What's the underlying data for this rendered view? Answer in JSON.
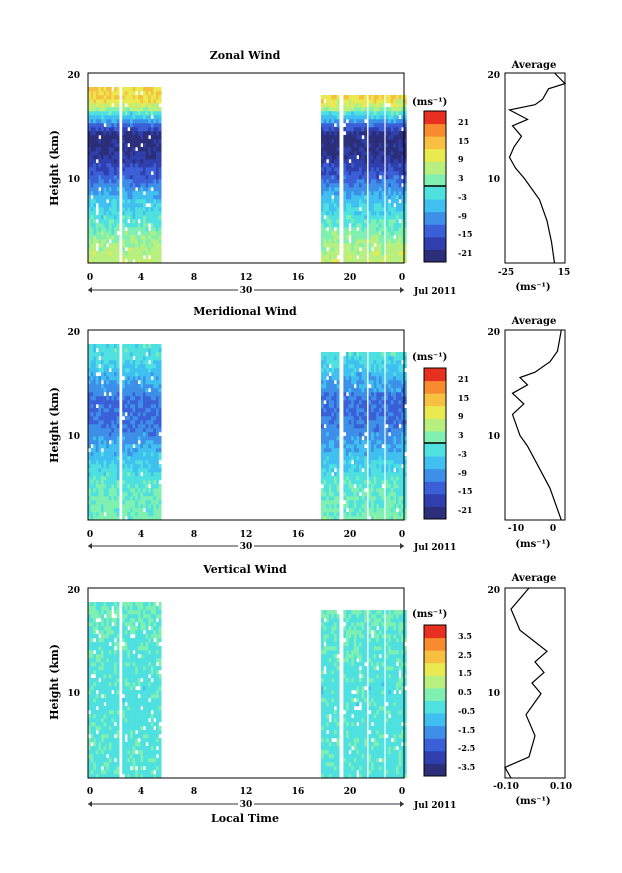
{
  "panels": [
    {
      "title": "Zonal Wind",
      "cbar_ticks": [
        "21",
        "15",
        "9",
        "3",
        "-3",
        "-9",
        "-15",
        "-21"
      ],
      "avg_title": "Average",
      "avg_xticks": [
        "-25",
        "15"
      ]
    },
    {
      "title": "Meridional Wind",
      "cbar_ticks": [
        "21",
        "15",
        "9",
        "3",
        "-3",
        "-9",
        "-15",
        "-21"
      ],
      "avg_title": "Average",
      "avg_xticks": [
        "-10",
        "0"
      ]
    },
    {
      "title": "Vertical Wind",
      "cbar_ticks": [
        "3.5",
        "2.5",
        "1.5",
        "0.5",
        "-0.5",
        "-1.5",
        "-2.5",
        "-3.5"
      ],
      "avg_title": "Average",
      "avg_xticks": [
        "-0.10",
        "0.10"
      ]
    }
  ],
  "common": {
    "ylabel": "Height (km)",
    "yticks": [
      "20",
      "10"
    ],
    "xticks": [
      "0",
      "4",
      "8",
      "12",
      "16",
      "20",
      "0"
    ],
    "date_day": "30",
    "date_month": "Jul 2011",
    "cbar_unit": "(ms⁻¹)",
    "avg_unit": "(ms⁻¹)",
    "xlabel": "Local Time"
  },
  "colors": {
    "colorscale": [
      "#2b2f7a",
      "#2f3fae",
      "#3a5fd6",
      "#3d8fe8",
      "#3fc0f0",
      "#4fe0e0",
      "#7ff0b0",
      "#b8f080",
      "#e8ea50",
      "#f8c040",
      "#f88a30",
      "#e83020"
    ]
  },
  "chart_data": [
    {
      "type": "heatmap",
      "title": "Zonal Wind",
      "xlabel": "",
      "ylabel": "Height (km)",
      "x_range": [
        0,
        24
      ],
      "ylim": [
        2,
        20
      ],
      "colorbar": {
        "unit": "(ms⁻¹)",
        "range": [
          -24,
          24
        ],
        "ticks": [
          21,
          15,
          9,
          3,
          -3,
          -9,
          -15,
          -21
        ]
      },
      "data_segments_hours": [
        [
          0,
          2.3
        ],
        [
          2.6,
          5.4
        ],
        [
          17.7,
          19
        ],
        [
          19.4,
          21
        ],
        [
          21.3,
          22.3
        ],
        [
          22.6,
          24
        ]
      ],
      "profile": [
        [
          0,
          8
        ],
        [
          3,
          6
        ],
        [
          5,
          1
        ],
        [
          8,
          -6
        ],
        [
          10,
          -14
        ],
        [
          12,
          -20
        ],
        [
          14,
          -22
        ],
        [
          15,
          -12
        ],
        [
          16,
          -2
        ],
        [
          16.5,
          6
        ],
        [
          17.5,
          12
        ]
      ],
      "average_profile": {
        "xlim": [
          -25,
          15
        ],
        "x": [
          8,
          6,
          3,
          -2,
          -12,
          -18,
          -22,
          -19,
          -14,
          -20,
          -10,
          -22,
          -5,
          0,
          4,
          15,
          8
        ],
        "y": [
          2,
          4,
          6,
          8,
          10,
          11,
          12,
          13,
          14,
          15,
          15.6,
          16.5,
          17,
          17.5,
          18.5,
          19,
          20
        ]
      }
    },
    {
      "type": "heatmap",
      "title": "Meridional Wind",
      "xlabel": "",
      "ylabel": "Height (km)",
      "x_range": [
        0,
        24
      ],
      "ylim": [
        2,
        20
      ],
      "colorbar": {
        "unit": "(ms⁻¹)",
        "range": [
          -24,
          24
        ],
        "ticks": [
          21,
          15,
          9,
          3,
          -3,
          -9,
          -15,
          -21
        ]
      },
      "data_segments_hours": [
        [
          0,
          2.3
        ],
        [
          2.6,
          5.4
        ],
        [
          17.7,
          19
        ],
        [
          19.4,
          21
        ],
        [
          21.3,
          22.3
        ],
        [
          22.6,
          24
        ]
      ],
      "profile": [
        [
          0,
          3
        ],
        [
          3,
          1
        ],
        [
          5.5,
          -1
        ],
        [
          7,
          -4
        ],
        [
          9,
          -8
        ],
        [
          11,
          -12
        ],
        [
          13,
          -13
        ],
        [
          14,
          -10
        ],
        [
          15,
          -8
        ],
        [
          16,
          -5
        ],
        [
          17.5,
          -2
        ]
      ],
      "average_profile": {
        "xlim": [
          -14,
          2
        ],
        "x": [
          1,
          0,
          -2,
          -5,
          -8,
          -10,
          -12,
          -9,
          -12,
          -8,
          -10,
          -6,
          -2,
          0,
          1
        ],
        "y": [
          2,
          3,
          5,
          7,
          9,
          10,
          12,
          13,
          14,
          14.8,
          15.5,
          16,
          17,
          18,
          20
        ]
      }
    },
    {
      "type": "heatmap",
      "title": "Vertical Wind",
      "xlabel": "Local Time",
      "ylabel": "Height (km)",
      "x_range": [
        0,
        24
      ],
      "ylim": [
        2,
        20
      ],
      "colorbar": {
        "unit": "(ms⁻¹)",
        "range": [
          -4,
          4
        ],
        "ticks": [
          3.5,
          2.5,
          1.5,
          0.5,
          -0.5,
          -1.5,
          -2.5,
          -3.5
        ]
      },
      "data_segments_hours": [
        [
          0,
          2.3
        ],
        [
          2.6,
          5.4
        ],
        [
          17.7,
          19
        ],
        [
          19.4,
          21
        ],
        [
          21.3,
          22.3
        ],
        [
          22.6,
          24
        ]
      ],
      "profile": [
        [
          0,
          -0.3
        ],
        [
          5,
          -0.2
        ],
        [
          10,
          -0.3
        ],
        [
          15,
          -0.1
        ],
        [
          18,
          0.1
        ],
        [
          19.5,
          0
        ]
      ],
      "average_profile": {
        "xlim": [
          -0.1,
          0.1
        ],
        "x": [
          -0.08,
          -0.1,
          -0.02,
          0,
          -0.03,
          0.02,
          -0.01,
          0.03,
          0,
          0.04,
          -0.05,
          -0.08,
          -0.02
        ],
        "y": [
          2,
          3,
          4,
          6,
          8,
          10,
          11,
          12,
          13,
          14,
          16,
          18,
          20
        ]
      }
    }
  ]
}
